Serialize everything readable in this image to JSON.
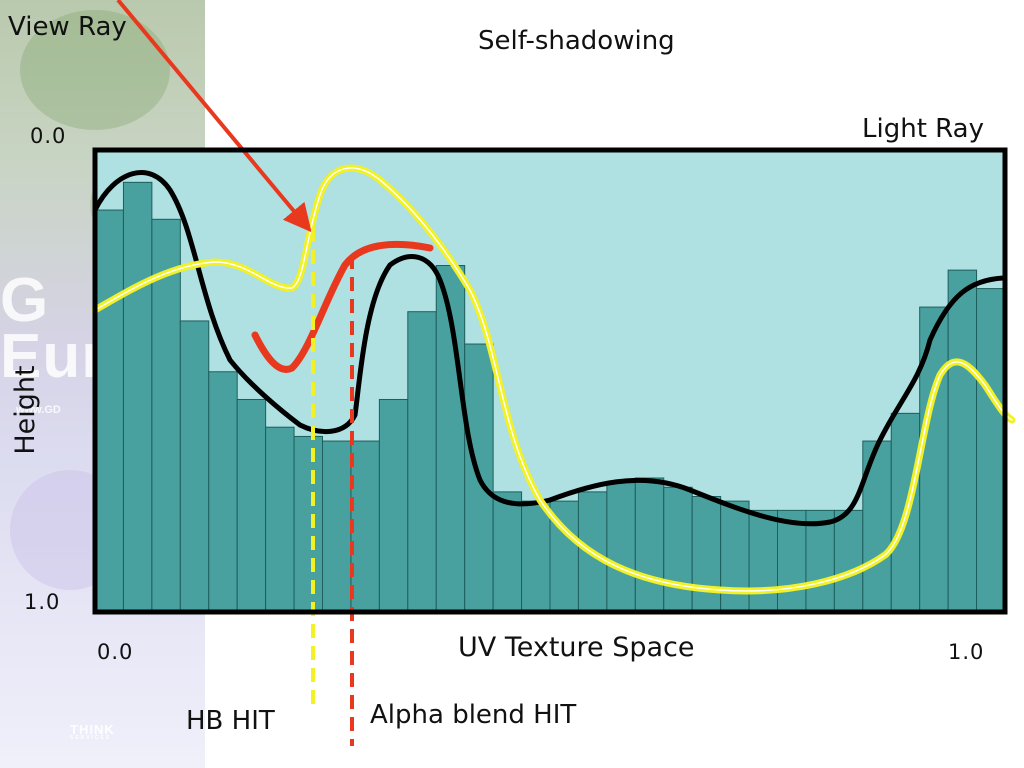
{
  "chart_data": {
    "type": "bar",
    "title": "Self-shadowing",
    "xlabel": "UV Texture Space",
    "ylabel": "Height",
    "x_ticks": [
      "0.0",
      "1.0"
    ],
    "y_ticks": [
      "0.0",
      "1.0"
    ],
    "xlim": [
      0,
      1
    ],
    "ylim": [
      0,
      1
    ],
    "y_inverted": true,
    "grid": false,
    "values": [
      0.13,
      0.07,
      0.15,
      0.37,
      0.48,
      0.54,
      0.6,
      0.62,
      0.63,
      0.63,
      0.54,
      0.35,
      0.25,
      0.42,
      0.74,
      0.76,
      0.76,
      0.74,
      0.72,
      0.71,
      0.73,
      0.75,
      0.76,
      0.78,
      0.78,
      0.78,
      0.78,
      0.63,
      0.57,
      0.34,
      0.26,
      0.3
    ],
    "annotations": {
      "view_ray": "View Ray",
      "light_ray": "Light Ray",
      "hb_hit": "HB HIT",
      "alpha_hit": "Alpha blend HIT"
    },
    "colors": {
      "background": "#afe0e2",
      "bars": "#49a19f",
      "bar_edge": "#1e5e5c",
      "frame": "#000000",
      "true_surface": "#000000",
      "hb_surface": "#f1f126",
      "view_ray": "#e8391f",
      "hb_hit_line": "#f1f126",
      "alpha_hit_line": "#e8391f"
    }
  },
  "branding": {
    "watermark_line1": "G",
    "watermark_line2": "Eur",
    "watermark_url": "www.GD",
    "logo_text": "THINK",
    "logo_sub": "SERVICES"
  }
}
